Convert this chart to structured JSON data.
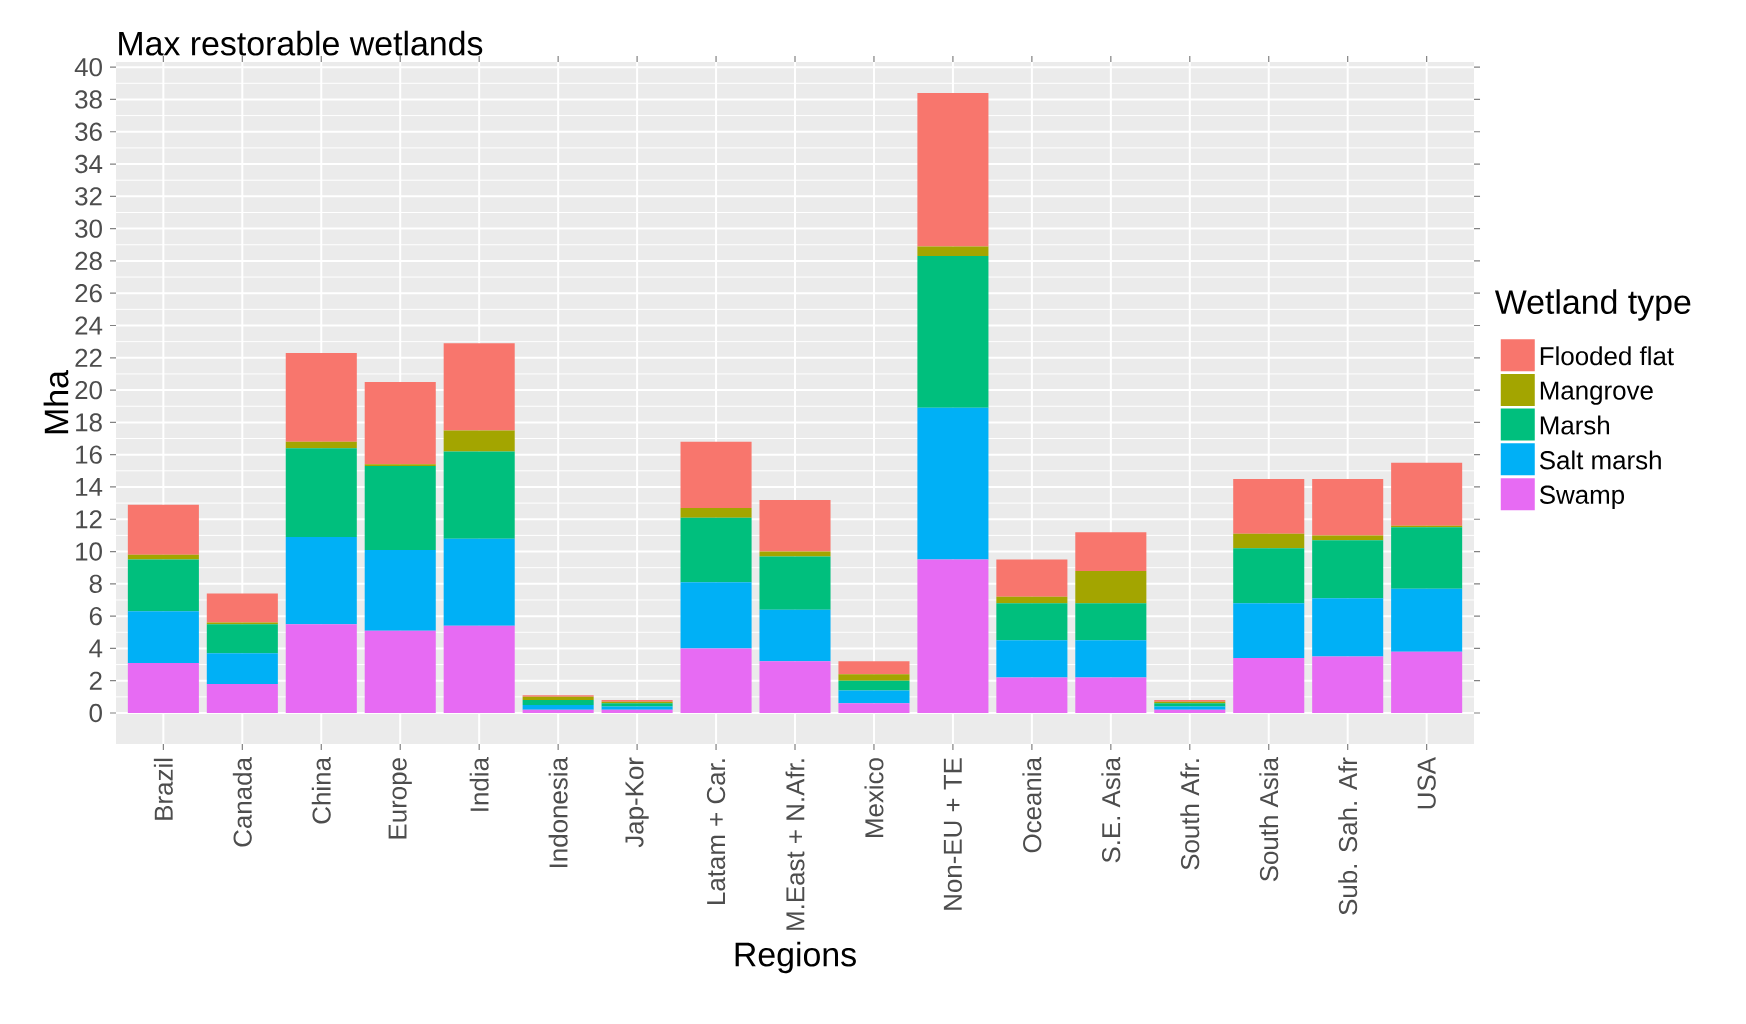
{
  "chart_data": {
    "type": "bar",
    "stacked": true,
    "title": "Max restorable wetlands",
    "xlabel": "Regions",
    "ylabel": "Mha",
    "legend_title": "Wetland type",
    "categories": [
      "Brazil",
      "Canada",
      "China",
      "Europe",
      "India",
      "Indonesia",
      "Jap-Kor",
      "Latam + Car.",
      "M.East + N.Afr.",
      "Mexico",
      "Non-EU + TE",
      "Oceania",
      "S.E. Asia",
      "South Afr.",
      "South Asia",
      "Sub. Sah. Afr",
      "USA"
    ],
    "series": [
      {
        "name": "Swamp",
        "color": "#e76bf3",
        "values": [
          3.1,
          1.8,
          5.5,
          5.1,
          5.4,
          0.2,
          0.2,
          4.0,
          3.2,
          0.6,
          9.5,
          2.2,
          2.2,
          0.2,
          3.4,
          3.5,
          3.8
        ]
      },
      {
        "name": "Salt marsh",
        "color": "#00b0f6",
        "values": [
          3.2,
          1.9,
          5.4,
          5.0,
          5.4,
          0.3,
          0.2,
          4.1,
          3.2,
          0.8,
          9.4,
          2.3,
          2.3,
          0.2,
          3.4,
          3.6,
          3.9
        ]
      },
      {
        "name": "Marsh",
        "color": "#00bf7d",
        "values": [
          3.2,
          1.8,
          5.5,
          5.2,
          5.4,
          0.3,
          0.2,
          4.0,
          3.3,
          0.6,
          9.4,
          2.3,
          2.3,
          0.2,
          3.4,
          3.6,
          3.8
        ]
      },
      {
        "name": "Mangrove",
        "color": "#a3a500",
        "values": [
          0.3,
          0.1,
          0.4,
          0.1,
          1.3,
          0.2,
          0.1,
          0.6,
          0.3,
          0.4,
          0.6,
          0.4,
          2.0,
          0.1,
          0.9,
          0.3,
          0.1
        ]
      },
      {
        "name": "Flooded flat",
        "color": "#f8766d",
        "values": [
          3.1,
          1.8,
          5.5,
          5.1,
          5.4,
          0.1,
          0.1,
          4.1,
          3.2,
          0.8,
          9.5,
          2.3,
          2.4,
          0.1,
          3.4,
          3.5,
          3.9
        ]
      }
    ],
    "ylim": [
      -1.92,
      40.32
    ],
    "yticks": [
      0,
      2,
      4,
      6,
      8,
      10,
      12,
      14,
      16,
      18,
      20,
      22,
      24,
      26,
      28,
      30,
      32,
      34,
      36,
      38,
      40
    ],
    "grid": true,
    "legend": "right"
  }
}
